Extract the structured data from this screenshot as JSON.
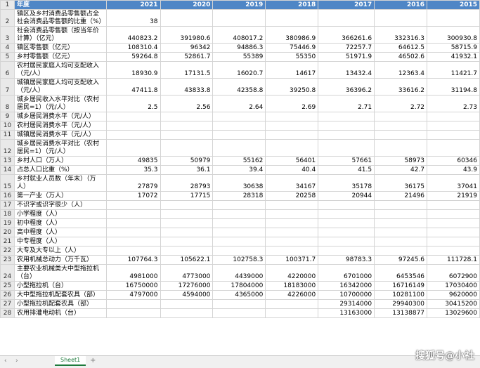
{
  "sheet": {
    "header": {
      "row": "1",
      "label": "年度",
      "years": [
        "2021",
        "2020",
        "2019",
        "2018",
        "2017",
        "2016",
        "2015"
      ]
    },
    "rows": [
      {
        "n": "2",
        "label": "镇区及乡村消费品零售额占全社会消费品零售额的比重（%）",
        "values": [
          "38",
          "",
          "",
          "",
          "",
          "",
          ""
        ]
      },
      {
        "n": "3",
        "label": "社会消费品零售额（按当年价计算）（亿元）",
        "values": [
          "440823.2",
          "391980.6",
          "408017.2",
          "380986.9",
          "366261.6",
          "332316.3",
          "300930.8"
        ]
      },
      {
        "n": "4",
        "label": "镇区零售额（亿元）",
        "values": [
          "108310.4",
          "96342",
          "94886.3",
          "75446.9",
          "72257.7",
          "64612.5",
          "58715.9"
        ]
      },
      {
        "n": "5",
        "label": "乡村零售额（亿元）",
        "values": [
          "59264.8",
          "52861.7",
          "55389",
          "55350",
          "51971.9",
          "46502.6",
          "41932.1"
        ]
      },
      {
        "n": "6",
        "label": "农村居民家庭人均可支配收入（元/人）",
        "values": [
          "18930.9",
          "17131.5",
          "16020.7",
          "14617",
          "13432.4",
          "12363.4",
          "11421.7"
        ]
      },
      {
        "n": "7",
        "label": "城镇居民家庭人均可支配收入（元/人）",
        "values": [
          "47411.8",
          "43833.8",
          "42358.8",
          "39250.8",
          "36396.2",
          "33616.2",
          "31194.8"
        ]
      },
      {
        "n": "8",
        "label": "城乡居民收入水平对比（农村居民=1）（元/人）",
        "values": [
          "2.5",
          "2.56",
          "2.64",
          "2.69",
          "2.71",
          "2.72",
          "2.73"
        ]
      },
      {
        "n": "9",
        "label": "城乡居民消费水平（元/人）",
        "values": [
          "",
          "",
          "",
          "",
          "",
          "",
          ""
        ]
      },
      {
        "n": "10",
        "label": "农村居民消费水平（元/人）",
        "values": [
          "",
          "",
          "",
          "",
          "",
          "",
          ""
        ]
      },
      {
        "n": "11",
        "label": "城镇居民消费水平（元/人）",
        "values": [
          "",
          "",
          "",
          "",
          "",
          "",
          ""
        ]
      },
      {
        "n": "12",
        "label": "城乡居民消费水平对比（农村居民=1）（元/人）",
        "values": [
          "",
          "",
          "",
          "",
          "",
          "",
          ""
        ]
      },
      {
        "n": "13",
        "label": "乡村人口（万人）",
        "values": [
          "49835",
          "50979",
          "55162",
          "56401",
          "57661",
          "58973",
          "60346"
        ]
      },
      {
        "n": "14",
        "label": "占总人口比重（%）",
        "values": [
          "35.3",
          "36.1",
          "39.4",
          "40.4",
          "41.5",
          "42.7",
          "43.9"
        ]
      },
      {
        "n": "15",
        "label": "乡村就业人员数（年末）（万人）",
        "values": [
          "27879",
          "28793",
          "30638",
          "34167",
          "35178",
          "36175",
          "37041"
        ]
      },
      {
        "n": "16",
        "label": "第一产业（万人）",
        "values": [
          "17072",
          "17715",
          "28318",
          "20258",
          "20944",
          "21496",
          "21919"
        ]
      },
      {
        "n": "17",
        "label": "不识字或识字很少（人）",
        "values": [
          "",
          "",
          "",
          "",
          "",
          "",
          ""
        ]
      },
      {
        "n": "18",
        "label": "小学程度（人）",
        "values": [
          "",
          "",
          "",
          "",
          "",
          "",
          ""
        ]
      },
      {
        "n": "19",
        "label": "初中程度（人）",
        "values": [
          "",
          "",
          "",
          "",
          "",
          "",
          ""
        ]
      },
      {
        "n": "20",
        "label": "高中程度（人）",
        "values": [
          "",
          "",
          "",
          "",
          "",
          "",
          ""
        ]
      },
      {
        "n": "21",
        "label": "中专程度（人）",
        "values": [
          "",
          "",
          "",
          "",
          "",
          "",
          ""
        ]
      },
      {
        "n": "22",
        "label": "大专及大专以上（人）",
        "values": [
          "",
          "",
          "",
          "",
          "",
          "",
          ""
        ]
      },
      {
        "n": "23",
        "label": "农用机械总动力（万千瓦）",
        "values": [
          "107764.3",
          "105622.1",
          "102758.3",
          "100371.7",
          "98783.3",
          "97245.6",
          "111728.1"
        ]
      },
      {
        "n": "24",
        "label": "主要农业机械类大中型拖拉机（台）",
        "values": [
          "4981000",
          "4773000",
          "4439000",
          "4220000",
          "6701000",
          "6453546",
          "6072900"
        ]
      },
      {
        "n": "25",
        "label": "小型拖拉机（台）",
        "values": [
          "16750000",
          "17276000",
          "17804000",
          "18183000",
          "16342000",
          "16716149",
          "17030400"
        ]
      },
      {
        "n": "26",
        "label": "大中型拖拉机配套农具（部）",
        "values": [
          "4797000",
          "4594000",
          "4365000",
          "4226000",
          "10700000",
          "10281100",
          "9620000"
        ]
      },
      {
        "n": "27",
        "label": "小型拖拉机配套农具（部）",
        "values": [
          "",
          "",
          "",
          "",
          "29314000",
          "29940300",
          "30415200"
        ]
      },
      {
        "n": "28",
        "label": "农用排灌电动机（台）",
        "values": [
          "",
          "",
          "",
          "",
          "13163000",
          "13138877",
          "13029600"
        ]
      }
    ]
  },
  "tabs": {
    "sheet_name": "Sheet1",
    "add_label": "+",
    "nav_prev": "‹",
    "nav_next": "›"
  },
  "watermark": "搜狐号@小社"
}
